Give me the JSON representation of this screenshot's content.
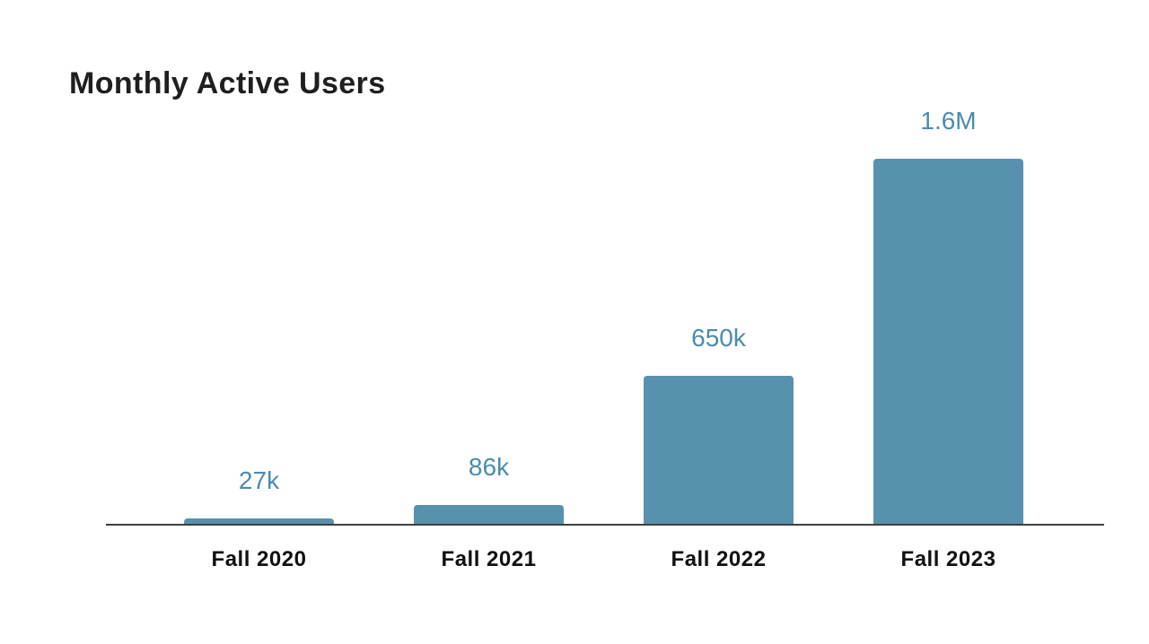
{
  "page": {
    "background_color": "#ffffff"
  },
  "chart_data": {
    "type": "bar",
    "title": "Monthly Active Users",
    "categories": [
      "Fall 2020",
      "Fall 2021",
      "Fall 2022",
      "Fall 2023"
    ],
    "values": [
      27000,
      86000,
      650000,
      1600000
    ],
    "value_labels": [
      "27k",
      "86k",
      "650k",
      "1.6M"
    ],
    "xlabel": "",
    "ylabel": "",
    "ylim": [
      0,
      1600000
    ],
    "grid": false,
    "legend": "none",
    "bar_color": "#5891AE",
    "value_label_color": "#4A8BB0",
    "category_label_color": "#111111",
    "title_color": "#1f1f1f",
    "axis_line_color": "#3f3f3f"
  }
}
